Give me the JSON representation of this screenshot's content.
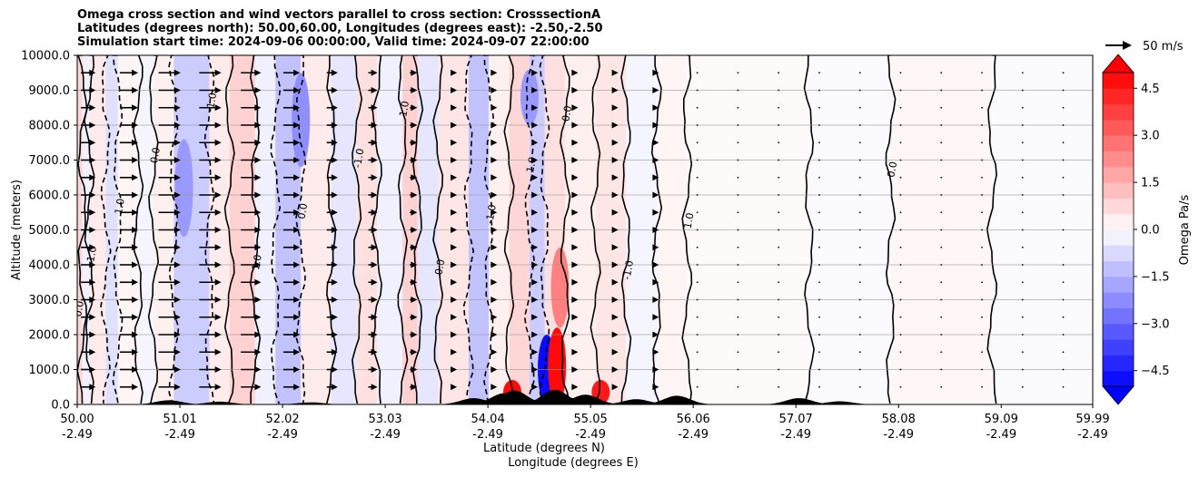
{
  "chart_data": {
    "type": "heatmap",
    "title_lines": [
      "Omega cross section and wind vectors parallel to cross section: CrosssectionA",
      "Latitudes (degrees north): 50.00,60.00, Longitudes (degrees east): -2.50,-2.50",
      "Simulation start time: 2024-09-06 00:00:00, Valid time: 2024-09-07 22:00:00"
    ],
    "ylabel": "Altitude (meters)",
    "xlabel_lat": "Latitude (degrees N)",
    "xlabel_lon": "Longitude (degrees E)",
    "ylim": [
      0,
      10000
    ],
    "y_ticks": [
      "0.0",
      "1000.0",
      "2000.0",
      "3000.0",
      "4000.0",
      "5000.0",
      "6000.0",
      "7000.0",
      "8000.0",
      "9000.0",
      "10000.0"
    ],
    "y_tick_values": [
      0,
      1000,
      2000,
      3000,
      4000,
      5000,
      6000,
      7000,
      8000,
      9000,
      10000
    ],
    "xlim": [
      50.0,
      59.99
    ],
    "x_tick_values": [
      50.0,
      51.01,
      52.02,
      53.03,
      54.04,
      55.05,
      56.06,
      57.07,
      58.08,
      59.09,
      59.99
    ],
    "x_ticks_lat": [
      "50.00",
      "51.01",
      "52.02",
      "53.03",
      "54.04",
      "55.05",
      "56.06",
      "57.07",
      "58.08",
      "59.09",
      "59.99"
    ],
    "x_ticks_lon": [
      "-2.49",
      "-2.49",
      "-2.49",
      "-2.49",
      "-2.49",
      "-2.49",
      "-2.49",
      "-2.49",
      "-2.49",
      "-2.49",
      "-2.49"
    ],
    "grid_y": true,
    "colorbar": {
      "label": "Omega Pa/s",
      "range": [
        -5.0,
        5.0
      ],
      "ticks": [
        -4.5,
        -3.0,
        -1.5,
        0.0,
        1.5,
        3.0,
        4.5
      ],
      "tick_labels": [
        "−4.5",
        "−3.0",
        "−1.5",
        "0.0",
        "1.5",
        "3.0",
        "4.5"
      ],
      "colormap": "bwr",
      "negative_color": "#0000ff",
      "positive_color": "#ff0000",
      "extend": "both"
    },
    "vector_key": {
      "label": "50 m/s",
      "speed": 50
    },
    "contour_levels": [
      -1.0,
      0.0,
      1.0
    ],
    "contour_labels": [
      "0.0",
      "1.0",
      "-1.0"
    ],
    "omega_bands": [
      {
        "x0": 50.0,
        "x1": 50.05,
        "value": 0.8
      },
      {
        "x0": 50.05,
        "x1": 50.12,
        "value": -0.3
      },
      {
        "x0": 50.12,
        "x1": 50.28,
        "value": 0.4
      },
      {
        "x0": 50.28,
        "x1": 50.4,
        "value": -0.6
      },
      {
        "x0": 50.4,
        "x1": 50.6,
        "value": 0.2
      },
      {
        "x0": 50.6,
        "x1": 50.75,
        "value": -0.2
      },
      {
        "x0": 50.75,
        "x1": 50.95,
        "value": 0.3
      },
      {
        "x0": 50.95,
        "x1": 51.3,
        "value": -1.0
      },
      {
        "x0": 51.3,
        "x1": 51.5,
        "value": 0.4
      },
      {
        "x0": 51.5,
        "x1": 51.75,
        "value": 0.9
      },
      {
        "x0": 51.75,
        "x1": 51.95,
        "value": -0.3
      },
      {
        "x0": 51.95,
        "x1": 52.2,
        "value": -1.2
      },
      {
        "x0": 52.2,
        "x1": 52.5,
        "value": 0.4
      },
      {
        "x0": 52.5,
        "x1": 52.75,
        "value": -0.5
      },
      {
        "x0": 52.75,
        "x1": 52.95,
        "value": 0.6
      },
      {
        "x0": 52.95,
        "x1": 53.2,
        "value": -0.3
      },
      {
        "x0": 53.2,
        "x1": 53.35,
        "value": 0.9
      },
      {
        "x0": 53.35,
        "x1": 53.55,
        "value": -0.5
      },
      {
        "x0": 53.55,
        "x1": 53.85,
        "value": 0.5
      },
      {
        "x0": 53.85,
        "x1": 54.05,
        "value": -1.2
      },
      {
        "x0": 54.05,
        "x1": 54.25,
        "value": 0.3
      },
      {
        "x0": 54.25,
        "x1": 54.45,
        "value": 0.8
      },
      {
        "x0": 54.45,
        "x1": 54.6,
        "value": -1.0
      },
      {
        "x0": 54.6,
        "x1": 54.8,
        "value": 0.6
      },
      {
        "x0": 54.8,
        "x1": 55.1,
        "value": 0.3
      },
      {
        "x0": 55.1,
        "x1": 55.4,
        "value": 0.5
      },
      {
        "x0": 55.4,
        "x1": 55.7,
        "value": -0.2
      },
      {
        "x0": 55.7,
        "x1": 56.0,
        "value": 0.2
      },
      {
        "x0": 56.0,
        "x1": 57.2,
        "value": 0.1
      },
      {
        "x0": 57.2,
        "x1": 58.0,
        "value": -0.1
      },
      {
        "x0": 58.0,
        "x1": 59.0,
        "value": 0.15
      },
      {
        "x0": 59.0,
        "x1": 59.99,
        "value": -0.1
      }
    ],
    "strong_cells": [
      {
        "x": 54.28,
        "y0": 0,
        "y1": 700,
        "value": 4.8
      },
      {
        "x": 54.62,
        "y0": 0,
        "y1": 2000,
        "value": -4.8
      },
      {
        "x": 54.72,
        "y0": 0,
        "y1": 2200,
        "value": 4.8
      },
      {
        "x": 55.15,
        "y0": 0,
        "y1": 700,
        "value": 4.5
      },
      {
        "x": 54.75,
        "y0": 2200,
        "y1": 4500,
        "value": 2.5
      },
      {
        "x": 54.45,
        "y0": 8000,
        "y1": 9600,
        "value": -2.0
      },
      {
        "x": 52.2,
        "y0": 6800,
        "y1": 9500,
        "value": -2.2
      },
      {
        "x": 51.05,
        "y0": 4800,
        "y1": 7600,
        "value": -2.0
      }
    ],
    "wind_rows_m": [
      500,
      1000,
      1500,
      2000,
      2500,
      3000,
      3500,
      4000,
      4500,
      5000,
      5500,
      6000,
      6500,
      7000,
      7500,
      8000,
      8500,
      9000,
      9500
    ],
    "wind_cols_deg": [
      50.1,
      50.5,
      50.9,
      51.3,
      51.7,
      52.1,
      52.5,
      52.9,
      53.3,
      53.7,
      54.1,
      54.5,
      54.9,
      55.3,
      55.7,
      56.1,
      56.5,
      56.9,
      57.3,
      57.7,
      58.1,
      58.5,
      58.9,
      59.3,
      59.7
    ],
    "wind_speeds_ms": [
      14,
      18,
      22,
      22,
      20,
      16,
      10,
      8,
      6,
      4,
      3,
      3,
      2,
      1,
      1,
      0,
      0,
      0,
      0,
      0,
      0,
      0,
      0,
      0,
      0
    ],
    "terrain_peaks": [
      {
        "x": 50.9,
        "h": 120
      },
      {
        "x": 51.4,
        "h": 80
      },
      {
        "x": 52.3,
        "h": 60
      },
      {
        "x": 53.9,
        "h": 180
      },
      {
        "x": 54.2,
        "h": 320
      },
      {
        "x": 54.3,
        "h": 400
      },
      {
        "x": 54.7,
        "h": 420
      },
      {
        "x": 55.0,
        "h": 280
      },
      {
        "x": 55.5,
        "h": 150
      },
      {
        "x": 55.9,
        "h": 250
      },
      {
        "x": 57.1,
        "h": 180
      },
      {
        "x": 57.5,
        "h": 90
      }
    ]
  }
}
